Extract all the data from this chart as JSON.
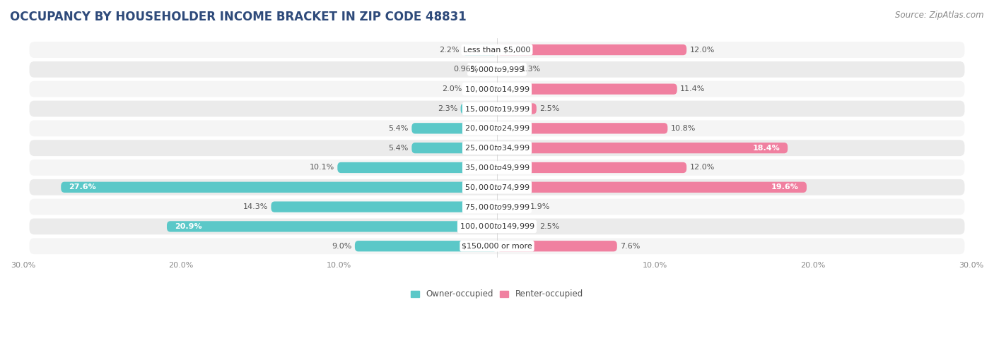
{
  "title": "OCCUPANCY BY HOUSEHOLDER INCOME BRACKET IN ZIP CODE 48831",
  "source": "Source: ZipAtlas.com",
  "categories": [
    "Less than $5,000",
    "$5,000 to $9,999",
    "$10,000 to $14,999",
    "$15,000 to $19,999",
    "$20,000 to $24,999",
    "$25,000 to $34,999",
    "$35,000 to $49,999",
    "$50,000 to $74,999",
    "$75,000 to $99,999",
    "$100,000 to $149,999",
    "$150,000 or more"
  ],
  "owner_values": [
    2.2,
    0.96,
    2.0,
    2.3,
    5.4,
    5.4,
    10.1,
    27.6,
    14.3,
    20.9,
    9.0
  ],
  "renter_values": [
    12.0,
    1.3,
    11.4,
    2.5,
    10.8,
    18.4,
    12.0,
    19.6,
    1.9,
    2.5,
    7.6
  ],
  "owner_color": "#5bc8c8",
  "renter_color": "#f080a0",
  "owner_label": "Owner-occupied",
  "renter_label": "Renter-occupied",
  "xlim": 30.0,
  "bar_height": 0.55,
  "row_colors": [
    "#f5f5f5",
    "#ebebeb"
  ],
  "title_color": "#2e4a7a",
  "title_fontsize": 12,
  "source_fontsize": 8.5,
  "label_fontsize": 8,
  "category_fontsize": 8,
  "axis_label_fontsize": 8,
  "legend_fontsize": 8.5
}
